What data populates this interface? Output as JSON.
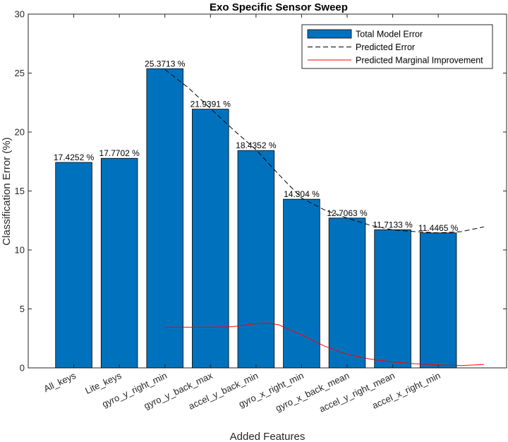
{
  "chart_data": {
    "type": "bar",
    "title": "Exo Specific Sensor Sweep",
    "xlabel": "Added Features",
    "ylabel": "Classification Error (%)",
    "ylim": [
      0,
      30
    ],
    "yticks": [
      0,
      5,
      10,
      15,
      20,
      25,
      30
    ],
    "grid": false,
    "legend_position": "top-right",
    "categories": [
      "All_keys",
      "Lite_keys",
      "gyro_y_right_min",
      "gyro_y_back_max",
      "accel_y_back_min",
      "gyro_x_right_min",
      "gyro_x_back_mean",
      "accel_y_right_mean",
      "accel_x_right_min"
    ],
    "values": [
      17.4252,
      17.7702,
      25.3713,
      21.9391,
      18.4352,
      14.304,
      12.7063,
      11.7133,
      11.4465
    ],
    "value_labels": [
      "17.4252 %",
      "17.7702 %",
      "25.3713 %",
      "21.9391 %",
      "18.4352 %",
      "14.304 %",
      "12.7063 %",
      "11.7133 %",
      "11.4465 %"
    ],
    "series": [
      {
        "name": "Total Model Error",
        "type": "bar",
        "color": "#0072BD",
        "values": [
          17.4252,
          17.7702,
          25.3713,
          21.9391,
          18.4352,
          14.304,
          12.7063,
          11.7133,
          11.4465
        ]
      },
      {
        "name": "Predicted Error",
        "type": "line",
        "style": "dashed",
        "color": "#000000",
        "x": [
          3,
          3.5,
          4,
          4.5,
          5,
          5.5,
          6,
          6.5,
          7,
          7.5,
          8,
          8.5,
          9,
          9.5,
          10
        ],
        "y": [
          25.3,
          23.8,
          22.0,
          20.2,
          18.5,
          16.4,
          14.4,
          13.4,
          12.7,
          12.1,
          11.7,
          11.55,
          11.45,
          11.55,
          11.95
        ]
      },
      {
        "name": "Predicted Marginal Improvement",
        "type": "line",
        "style": "solid",
        "color": "#FF0000",
        "x": [
          3,
          3.5,
          4,
          4.5,
          5,
          5.25,
          5.5,
          6,
          6.5,
          7,
          7.5,
          8,
          8.5,
          9,
          9.5,
          10
        ],
        "y": [
          3.45,
          3.45,
          3.45,
          3.5,
          3.75,
          3.8,
          3.65,
          2.8,
          1.85,
          1.15,
          0.75,
          0.5,
          0.35,
          0.25,
          0.2,
          0.28
        ]
      }
    ]
  }
}
